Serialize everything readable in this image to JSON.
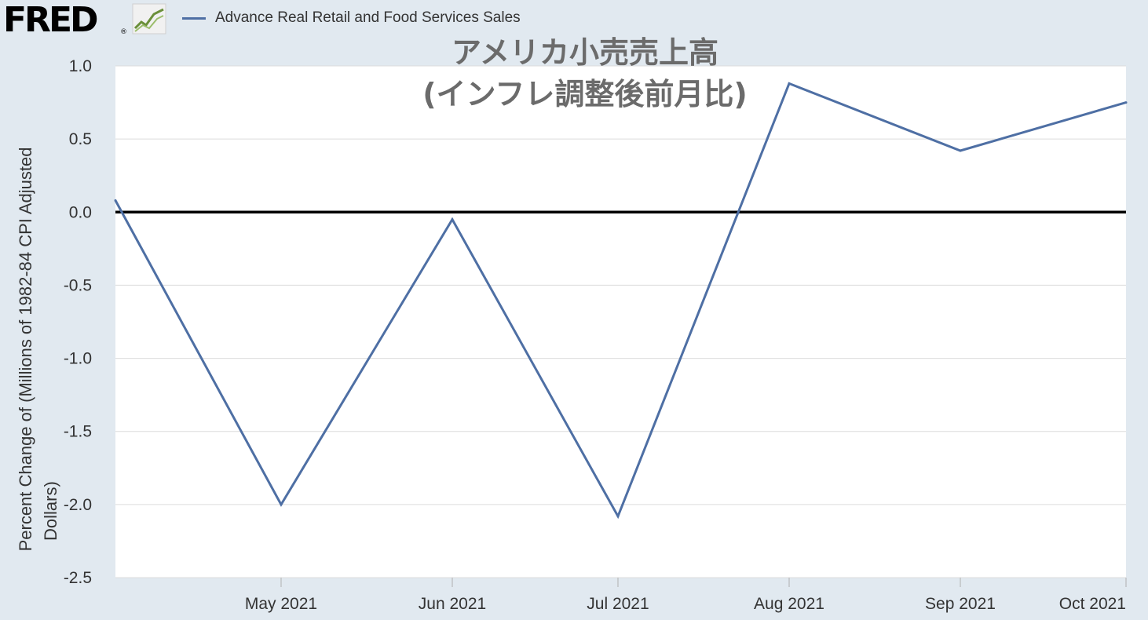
{
  "header": {
    "logo_text": "FRED",
    "logo_mark": "®",
    "logo_icon": "chart-line-icon"
  },
  "colors": {
    "series": "#4e6fa4",
    "zero_line": "#000000",
    "background": "#e1e9f0",
    "plot_bg": "#ffffff",
    "grid": "#dddddd",
    "title": "#6b6b6b"
  },
  "chart_data": {
    "type": "line",
    "title_lines": [
      "アメリカ小売売上高",
      "(インフレ調整後前月比)"
    ],
    "ylabel_lines": [
      "Percent Change of (Millions of 1982-84 CPI Adjusted",
      "Dollars)"
    ],
    "xlabel": "",
    "ylim": [
      -2.5,
      1.0
    ],
    "yticks": [
      1.0,
      0.5,
      0.0,
      -0.5,
      -1.0,
      -1.5,
      -2.0,
      -2.5
    ],
    "ytick_labels": [
      "1.0",
      "0.5",
      "0.0",
      "-0.5",
      "-1.0",
      "-1.5",
      "-2.0",
      "-2.5"
    ],
    "xlim": [
      "2021-04-01",
      "2021-10-01"
    ],
    "xticks": [
      "2021-05-01",
      "2021-06-01",
      "2021-07-01",
      "2021-08-01",
      "2021-09-01",
      "2021-10-01"
    ],
    "xtick_labels": [
      "May 2021",
      "Jun 2021",
      "Jul 2021",
      "Aug 2021",
      "Sep 2021",
      "Oct 2021"
    ],
    "grid": true,
    "legend": "top-left",
    "reference_line": 0.0,
    "series": [
      {
        "name": "Advance Real Retail and Food Services Sales",
        "x": [
          "2021-04-01",
          "2021-05-01",
          "2021-06-01",
          "2021-07-01",
          "2021-08-01",
          "2021-09-01",
          "2021-10-01"
        ],
        "values": [
          0.08,
          -2.0,
          -0.05,
          -2.08,
          0.88,
          0.42,
          0.75
        ]
      }
    ]
  }
}
